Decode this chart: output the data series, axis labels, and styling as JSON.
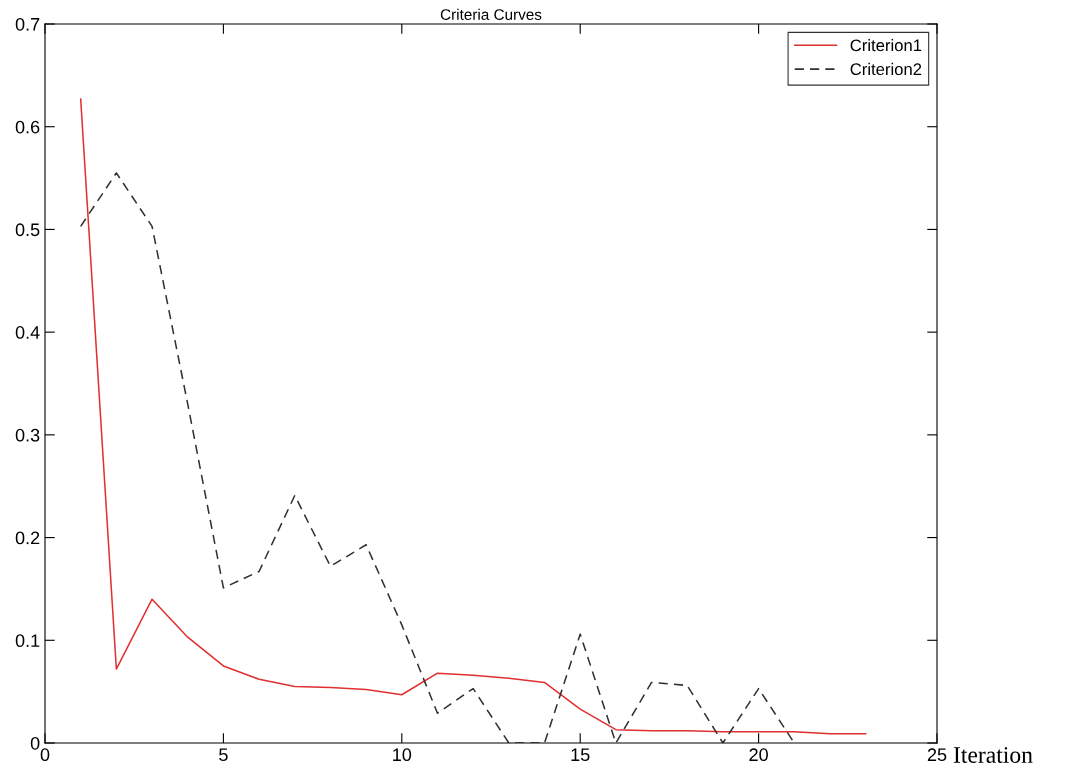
{
  "chart_data": {
    "type": "line",
    "title": "Criteria Curves",
    "xlabel": "Iteration",
    "x": [
      1,
      2,
      3,
      4,
      5,
      6,
      7,
      8,
      9,
      10,
      11,
      12,
      13,
      14,
      15,
      16,
      17,
      18,
      19,
      20,
      21,
      22,
      23
    ],
    "series": [
      {
        "name": "Criterion1",
        "color": "#e03030",
        "line_style": "solid",
        "values": [
          0.627,
          0.072,
          0.14,
          0.103,
          0.075,
          0.062,
          0.055,
          0.054,
          0.052,
          0.047,
          0.068,
          0.066,
          0.063,
          0.059,
          0.033,
          0.013,
          0.012,
          0.012,
          0.011,
          0.011,
          0.011,
          0.009,
          0.009
        ]
      },
      {
        "name": "Criterion2",
        "color": "#303030",
        "line_style": "dashed",
        "x": [
          1,
          2,
          3,
          4,
          5,
          6,
          7,
          8,
          9,
          10,
          11,
          12,
          13,
          14,
          15,
          16,
          17,
          18,
          19,
          20,
          21
        ],
        "values": [
          0.503,
          0.555,
          0.503,
          0.33,
          0.151,
          0.167,
          0.241,
          0.172,
          0.193,
          0.115,
          0.029,
          0.053,
          0,
          0,
          0.106,
          0,
          0.059,
          0.056,
          0,
          0.053,
          0
        ]
      }
    ],
    "xlim": [
      0,
      25
    ],
    "xticks": [
      0,
      5,
      10,
      15,
      20,
      25
    ],
    "ylim": [
      0,
      0.7
    ],
    "yticks": [
      0,
      0.1,
      0.2,
      0.3,
      0.4,
      0.5,
      0.6,
      0.7
    ],
    "grid": false,
    "legend": "top right",
    "marker": "none"
  }
}
